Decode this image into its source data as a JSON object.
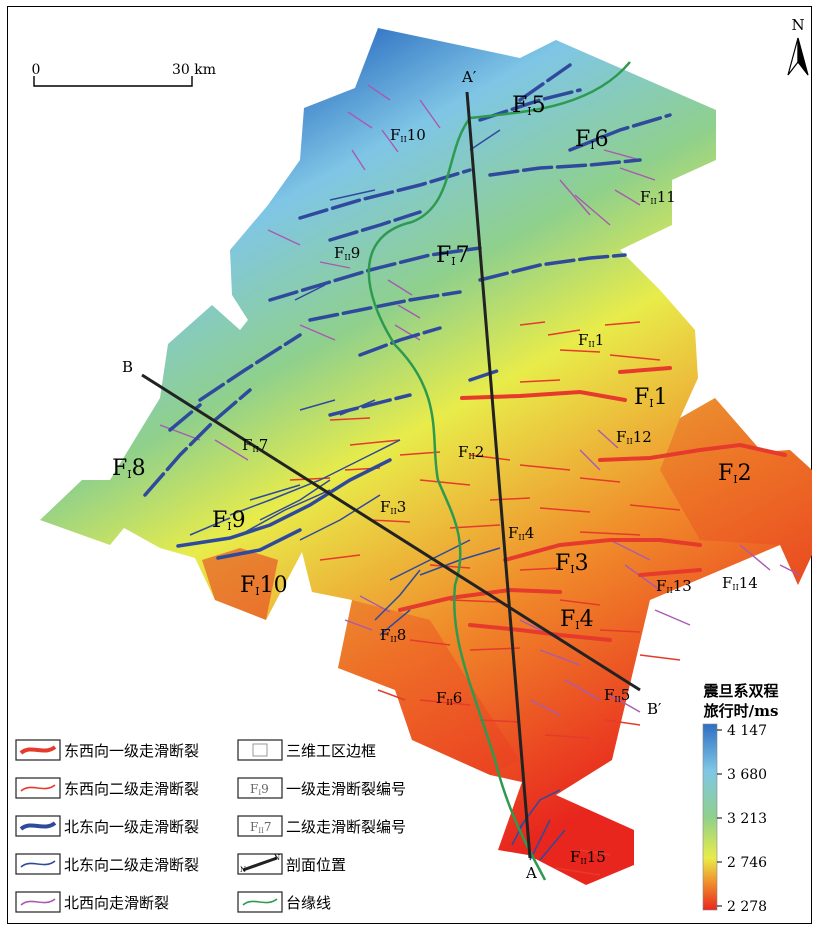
{
  "map": {
    "north_label": "N",
    "scale": {
      "start": "0",
      "end": "30 km"
    },
    "section_labels": [
      {
        "id": "A-prime",
        "text": "A′"
      },
      {
        "id": "A",
        "text": "A"
      },
      {
        "id": "B",
        "text": "B"
      },
      {
        "id": "B-prime",
        "text": "B′"
      }
    ],
    "fault_labels": [
      {
        "id": "fi1",
        "main": "F",
        "sub": "I",
        "num": "1"
      },
      {
        "id": "fi2",
        "main": "F",
        "sub": "I",
        "num": "2"
      },
      {
        "id": "fi3",
        "main": "F",
        "sub": "I",
        "num": "3"
      },
      {
        "id": "fi4",
        "main": "F",
        "sub": "I",
        "num": "4"
      },
      {
        "id": "fi5",
        "main": "F",
        "sub": "I",
        "num": "5"
      },
      {
        "id": "fi6",
        "main": "F",
        "sub": "I",
        "num": "6"
      },
      {
        "id": "fi7",
        "main": "F",
        "sub": "I",
        "num": "7"
      },
      {
        "id": "fi8",
        "main": "F",
        "sub": "I",
        "num": "8"
      },
      {
        "id": "fi9",
        "main": "F",
        "sub": "I",
        "num": "9"
      },
      {
        "id": "fi10",
        "main": "F",
        "sub": "I",
        "num": "10"
      },
      {
        "id": "fii1",
        "main": "F",
        "sub": "II",
        "num": "1"
      },
      {
        "id": "fii2",
        "main": "F",
        "sub": "II",
        "num": "2"
      },
      {
        "id": "fii3",
        "main": "F",
        "sub": "II",
        "num": "3"
      },
      {
        "id": "fii4",
        "main": "F",
        "sub": "II",
        "num": "4"
      },
      {
        "id": "fii5",
        "main": "F",
        "sub": "II",
        "num": "5"
      },
      {
        "id": "fii6",
        "main": "F",
        "sub": "II",
        "num": "6"
      },
      {
        "id": "fii7",
        "main": "F",
        "sub": "II",
        "num": "7"
      },
      {
        "id": "fii8",
        "main": "F",
        "sub": "II",
        "num": "8"
      },
      {
        "id": "fii9",
        "main": "F",
        "sub": "II",
        "num": "9"
      },
      {
        "id": "fii10",
        "main": "F",
        "sub": "II",
        "num": "10"
      },
      {
        "id": "fii11",
        "main": "F",
        "sub": "II",
        "num": "11"
      },
      {
        "id": "fii12",
        "main": "F",
        "sub": "II",
        "num": "12"
      },
      {
        "id": "fii13",
        "main": "F",
        "sub": "II",
        "num": "13"
      },
      {
        "id": "fii14",
        "main": "F",
        "sub": "II",
        "num": "14"
      },
      {
        "id": "fii15",
        "main": "F",
        "sub": "II",
        "num": "15"
      }
    ]
  },
  "legend": {
    "items": [
      {
        "id": "ew-primary",
        "label": "东西向一级走滑断裂",
        "symbol": "thick-line",
        "color": "#e53a2c"
      },
      {
        "id": "ew-secondary",
        "label": "东西向二级走滑断裂",
        "symbol": "thin-line",
        "color": "#e53a2c"
      },
      {
        "id": "ne-primary",
        "label": "北东向一级走滑断裂",
        "symbol": "thick-line",
        "color": "#2f4a9c"
      },
      {
        "id": "ne-secondary",
        "label": "北东向二级走滑断裂",
        "symbol": "thin-line",
        "color": "#2f4a9c"
      },
      {
        "id": "nw-strike",
        "label": "北西向走滑断裂",
        "symbol": "thin-line",
        "color": "#a95ab0"
      },
      {
        "id": "survey-border",
        "label": "三维工区边框",
        "symbol": "box"
      },
      {
        "id": "primary-id",
        "label": "一级走滑断裂编号",
        "symbol": "label",
        "tag": {
          "main": "F",
          "sub": "I",
          "num": "9"
        }
      },
      {
        "id": "secondary-id",
        "label": "二级走滑断裂编号",
        "symbol": "label",
        "tag": {
          "main": "F",
          "sub": "II",
          "num": "7"
        }
      },
      {
        "id": "section",
        "label": "剖面位置",
        "symbol": "section",
        "tag": {
          "a": "N",
          "b": "N"
        }
      },
      {
        "id": "platform-margin",
        "label": "台缘线",
        "symbol": "thin-line",
        "color": "#2e9a4f"
      }
    ]
  },
  "colorbar": {
    "title_line1": "震旦系双程",
    "title_line2": "旅行时/ms",
    "ticks": [
      "4 147",
      "3 680",
      "3 213",
      "2 746",
      "2 278"
    ],
    "colors": [
      "#2e6fc2",
      "#7fc6e6",
      "#8fd08c",
      "#e8ec4a",
      "#f08a2a",
      "#e8261e"
    ]
  }
}
